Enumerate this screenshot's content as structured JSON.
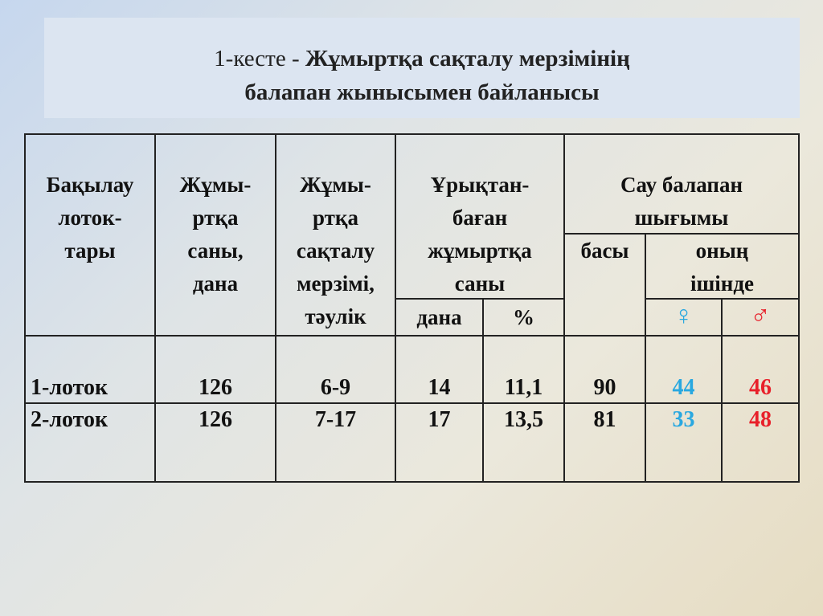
{
  "title": {
    "prefix": "1-кесте - ",
    "line1_bold": "Жұмыртқа сақталу мерзімінің",
    "line2": "балапан жынысымен байланысы"
  },
  "table": {
    "headers": {
      "trays": [
        "Бақылау",
        "лоток-",
        "тары"
      ],
      "egg_count": [
        "Жұмы-",
        "ртқа",
        "саны,",
        "дана"
      ],
      "storage": [
        "Жұмы-",
        "ртқа",
        "сақталу",
        "мерзімі,",
        "тәулік"
      ],
      "unfertilized": [
        "Ұрықтан-",
        "баған",
        "жұмыртқа",
        "саны"
      ],
      "unfertilized_pcs": "дана",
      "unfertilized_pct": "%",
      "healthy": [
        "Сау балапан",
        "шығымы"
      ],
      "total": "басы",
      "of_which": [
        "оның",
        "ішінде"
      ],
      "female": "♀",
      "male": "♂"
    },
    "rows": [
      {
        "tray": "1-лоток",
        "eggs": "126",
        "storage": "6-9",
        "pcs": "14",
        "pct": "11,1",
        "total": "90",
        "female": "44",
        "male": "46"
      },
      {
        "tray": "2-лоток",
        "eggs": "126",
        "storage": "7-17",
        "pcs": "17",
        "pct": "13,5",
        "total": "81",
        "female": "33",
        "male": "48"
      }
    ]
  },
  "colors": {
    "female": "#29a8e0",
    "male": "#e8202a"
  }
}
